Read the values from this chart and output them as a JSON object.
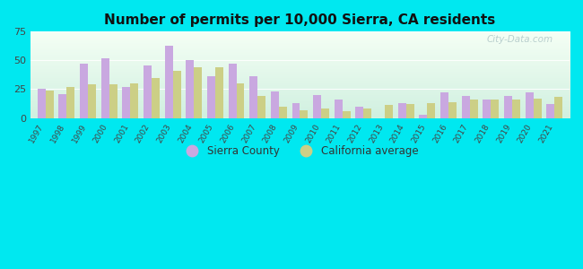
{
  "title": "Number of permits per 10,000 Sierra, CA residents",
  "years": [
    1997,
    1998,
    1999,
    2000,
    2001,
    2002,
    2003,
    2004,
    2005,
    2006,
    2007,
    2008,
    2009,
    2010,
    2011,
    2012,
    2013,
    2014,
    2015,
    2016,
    2017,
    2018,
    2019,
    2020,
    2021
  ],
  "sierra_county": [
    25,
    21,
    47,
    52,
    27,
    46,
    63,
    50,
    36,
    47,
    36,
    23,
    13,
    20,
    16,
    10,
    0,
    13,
    3,
    22,
    19,
    16,
    19,
    22,
    12
  ],
  "california_avg": [
    24,
    27,
    29,
    29,
    30,
    35,
    41,
    44,
    44,
    30,
    19,
    10,
    7,
    8,
    6,
    8,
    11,
    12,
    13,
    14,
    16,
    16,
    16,
    17,
    18
  ],
  "sierra_color": "#c9a8e0",
  "ca_color": "#cccf86",
  "background_outer": "#00e8f0",
  "ylim": [
    0,
    75
  ],
  "yticks": [
    0,
    25,
    50,
    75
  ],
  "bar_width": 0.38,
  "watermark": "City-Data.com",
  "legend_sierra": "Sierra County",
  "legend_ca": "California average",
  "grid_color": "#e0e0e0",
  "bg_top": "#f5fff5",
  "bg_bottom": "#d0f0e0"
}
